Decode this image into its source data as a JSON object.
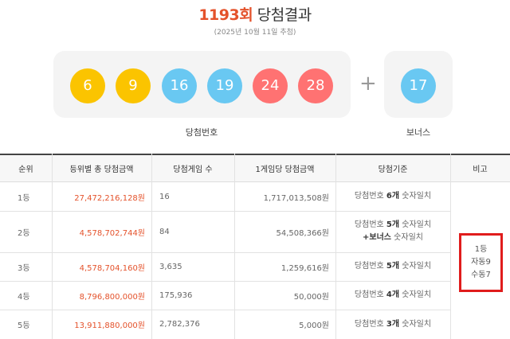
{
  "header": {
    "round": "1193회",
    "title_suffix": "당첨결과",
    "draw_date": "(2025년 10월 11일 추첨)"
  },
  "winning_numbers": {
    "caption": "당첨번호",
    "balls": [
      {
        "number": "6",
        "color": "#fbc400"
      },
      {
        "number": "9",
        "color": "#fbc400"
      },
      {
        "number": "16",
        "color": "#69c8f2"
      },
      {
        "number": "19",
        "color": "#69c8f2"
      },
      {
        "number": "24",
        "color": "#ff7272"
      },
      {
        "number": "28",
        "color": "#ff7272"
      }
    ],
    "plus_symbol": "+"
  },
  "bonus": {
    "caption": "보너스",
    "number": "17",
    "color": "#69c8f2"
  },
  "table": {
    "headers": [
      "순위",
      "등위별 총 당첨금액",
      "당첨게임 수",
      "1게임당 당첨금액",
      "당첨기준",
      "비고"
    ],
    "rows": [
      {
        "rank": "1등",
        "total": "27,472,216,128원",
        "games": "16",
        "per_game": "1,717,013,508원",
        "criteria_prefix": "당첨번호 ",
        "criteria_bold": "6개",
        "criteria_suffix": " 숫자일치",
        "criteria_line2_bold": "",
        "criteria_line2": ""
      },
      {
        "rank": "2등",
        "total": "4,578,702,744원",
        "games": "84",
        "per_game": "54,508,366원",
        "criteria_prefix": "당첨번호 ",
        "criteria_bold": "5개",
        "criteria_suffix": " 숫자일치",
        "criteria_line2_bold": "+보너스",
        "criteria_line2": " 숫자일치"
      },
      {
        "rank": "3등",
        "total": "4,578,704,160원",
        "games": "3,635",
        "per_game": "1,259,616원",
        "criteria_prefix": "당첨번호 ",
        "criteria_bold": "5개",
        "criteria_suffix": " 숫자일치",
        "criteria_line2_bold": "",
        "criteria_line2": ""
      },
      {
        "rank": "4등",
        "total": "8,796,800,000원",
        "games": "175,936",
        "per_game": "50,000원",
        "criteria_prefix": "당첨번호 ",
        "criteria_bold": "4개",
        "criteria_suffix": " 숫자일치",
        "criteria_line2_bold": "",
        "criteria_line2": ""
      },
      {
        "rank": "5등",
        "total": "13,911,880,000원",
        "games": "2,782,376",
        "per_game": "5,000원",
        "criteria_prefix": "당첨번호 ",
        "criteria_bold": "3개",
        "criteria_suffix": " 숫자일치",
        "criteria_line2_bold": "",
        "criteria_line2": ""
      }
    ],
    "note": {
      "line1": "1등",
      "line2": "자동9",
      "line3": "수동7",
      "highlight_color": "#e01c1c"
    }
  }
}
